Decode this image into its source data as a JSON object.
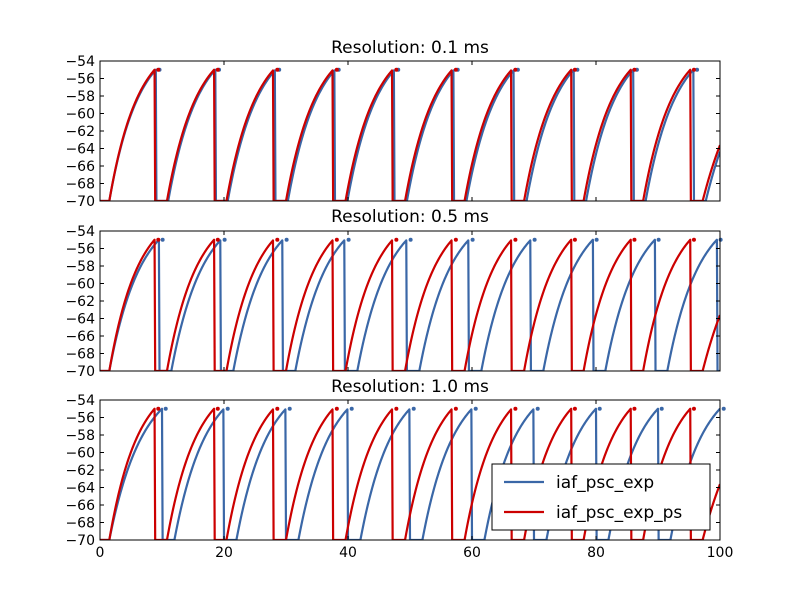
{
  "figure": {
    "background": "#ffffff",
    "colors": {
      "iaf_psc_exp": "#3a67a7",
      "iaf_psc_exp_ps": "#cc0000"
    }
  },
  "legend": {
    "placement": "lower-right of bottom panel",
    "entries": [
      "iaf_psc_exp",
      "iaf_psc_exp_ps"
    ]
  },
  "chart_data": [
    {
      "type": "line",
      "title": "Resolution: 0.1 ms",
      "xlabel": "",
      "ylabel": "",
      "xlim": [
        0,
        100
      ],
      "ylim": [
        -70,
        -54
      ],
      "xticks": [],
      "yticks": [
        -54,
        -56,
        -58,
        -60,
        -62,
        -64,
        -66,
        -68,
        -70
      ],
      "grid": false,
      "series": [
        {
          "name": "iaf_psc_exp",
          "color": "#3a67a7",
          "spikes": [
            9.0,
            18.6,
            28.3,
            37.9,
            47.5,
            57.1,
            66.8,
            76.4,
            86.0,
            95.7
          ]
        },
        {
          "name": "iaf_psc_exp_ps",
          "color": "#cc0000",
          "spikes": [
            8.8,
            18.4,
            28.0,
            37.6,
            47.2,
            56.8,
            66.4,
            76.0,
            85.6,
            95.2
          ]
        }
      ]
    },
    {
      "type": "line",
      "title": "Resolution: 0.5 ms",
      "xlabel": "",
      "ylabel": "",
      "xlim": [
        0,
        100
      ],
      "ylim": [
        -70,
        -54
      ],
      "xticks": [],
      "yticks": [
        -54,
        -56,
        -58,
        -60,
        -62,
        -64,
        -66,
        -68,
        -70
      ],
      "grid": false,
      "series": [
        {
          "name": "iaf_psc_exp",
          "color": "#3a67a7",
          "spikes": [
            9.5,
            19.5,
            29.5,
            39.5,
            49.5,
            59.5,
            69.5,
            79.5,
            89.5,
            99.5
          ]
        },
        {
          "name": "iaf_psc_exp_ps",
          "color": "#cc0000",
          "spikes": [
            8.8,
            18.4,
            28.0,
            37.6,
            47.2,
            56.8,
            66.4,
            76.0,
            85.6,
            95.2
          ]
        }
      ]
    },
    {
      "type": "line",
      "title": "Resolution: 1.0 ms",
      "xlabel": "",
      "ylabel": "",
      "xlim": [
        0,
        100
      ],
      "ylim": [
        -70,
        -54
      ],
      "xticks": [
        0,
        20,
        40,
        60,
        80,
        100
      ],
      "yticks": [
        -54,
        -56,
        -58,
        -60,
        -62,
        -64,
        -66,
        -68,
        -70
      ],
      "grid": false,
      "series": [
        {
          "name": "iaf_psc_exp",
          "color": "#3a67a7",
          "spikes": [
            10.0,
            20.0,
            30.0,
            40.0,
            50.0,
            60.0,
            70.0,
            80.0,
            90.0,
            100.0
          ]
        },
        {
          "name": "iaf_psc_exp_ps",
          "color": "#cc0000",
          "spikes": [
            8.8,
            18.4,
            28.0,
            37.6,
            47.2,
            56.8,
            66.4,
            76.0,
            85.6,
            95.2
          ]
        }
      ]
    }
  ]
}
